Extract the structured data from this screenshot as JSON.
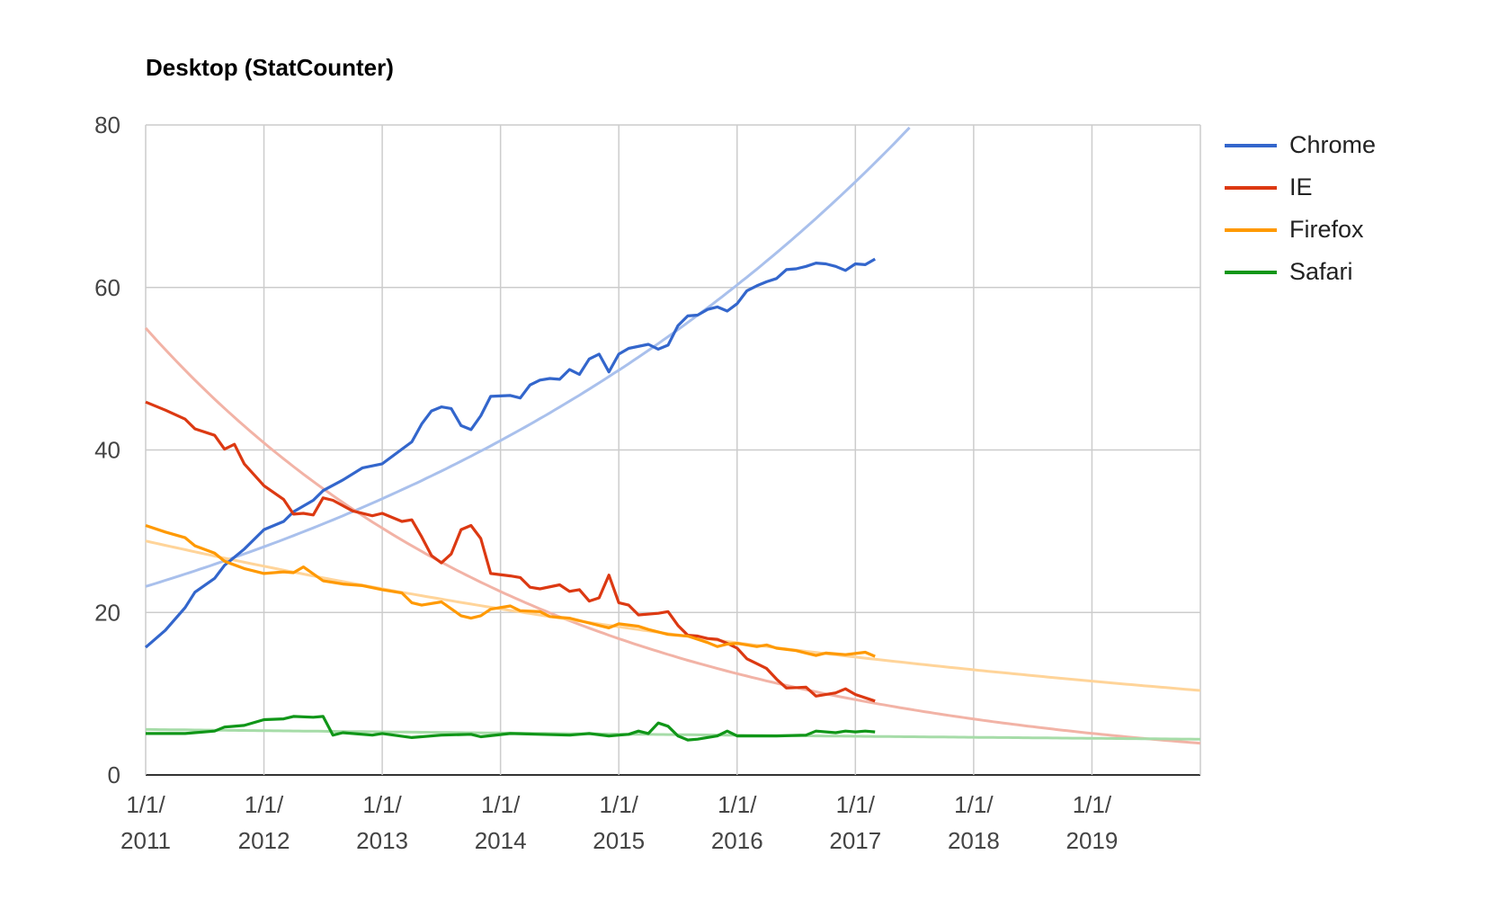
{
  "chart_data": {
    "type": "line",
    "title": "Desktop (StatCounter)",
    "xlabel": "",
    "ylabel": "",
    "ylim": [
      0,
      80
    ],
    "xlim": [
      "2011-01",
      "2019-12"
    ],
    "y_ticks": [
      {
        "value": 0,
        "label": "0"
      },
      {
        "value": 20,
        "label": "20"
      },
      {
        "value": 40,
        "label": "40"
      },
      {
        "value": 60,
        "label": "60"
      },
      {
        "value": 80,
        "label": "80"
      }
    ],
    "x_ticks": [
      {
        "value": "2011-01",
        "line1": "1/1/",
        "line2": "2011"
      },
      {
        "value": "2012-01",
        "line1": "1/1/",
        "line2": "2012"
      },
      {
        "value": "2013-01",
        "line1": "1/1/",
        "line2": "2013"
      },
      {
        "value": "2014-01",
        "line1": "1/1/",
        "line2": "2014"
      },
      {
        "value": "2015-01",
        "line1": "1/1/",
        "line2": "2015"
      },
      {
        "value": "2016-01",
        "line1": "1/1/",
        "line2": "2016"
      },
      {
        "value": "2017-01",
        "line1": "1/1/",
        "line2": "2017"
      },
      {
        "value": "2018-01",
        "line1": "1/1/",
        "line2": "2018"
      },
      {
        "value": "2019-01",
        "line1": "1/1/",
        "line2": "2019"
      }
    ],
    "grid": true,
    "legend_position": "right",
    "series": [
      {
        "name": "Chrome",
        "color": "#3366cc",
        "trend_color": "#a9c0ec",
        "trendline": {
          "type": "exponential",
          "points": [
            [
              "2011-01",
              23.2
            ],
            [
              "2017-01",
              73.0
            ],
            [
              "2017-06",
              80.0
            ]
          ]
        },
        "points": [
          [
            "2011-01",
            15.7
          ],
          [
            "2011-03",
            17.8
          ],
          [
            "2011-05",
            20.6
          ],
          [
            "2011-06",
            22.5
          ],
          [
            "2011-08",
            24.2
          ],
          [
            "2011-09",
            25.8
          ],
          [
            "2011-11",
            27.8
          ],
          [
            "2012-01",
            30.2
          ],
          [
            "2012-03",
            31.2
          ],
          [
            "2012-04",
            32.4
          ],
          [
            "2012-06",
            33.8
          ],
          [
            "2012-07",
            35.0
          ],
          [
            "2012-09",
            36.3
          ],
          [
            "2012-11",
            37.8
          ],
          [
            "2013-01",
            38.3
          ],
          [
            "2013-03",
            40.1
          ],
          [
            "2013-04",
            41.0
          ],
          [
            "2013-05",
            43.2
          ],
          [
            "2013-06",
            44.8
          ],
          [
            "2013-07",
            45.3
          ],
          [
            "2013-08",
            45.1
          ],
          [
            "2013-09",
            43.0
          ],
          [
            "2013-10",
            42.5
          ],
          [
            "2013-11",
            44.2
          ],
          [
            "2013-12",
            46.6
          ],
          [
            "2014-02",
            46.7
          ],
          [
            "2014-03",
            46.4
          ],
          [
            "2014-04",
            48.0
          ],
          [
            "2014-05",
            48.6
          ],
          [
            "2014-06",
            48.8
          ],
          [
            "2014-07",
            48.7
          ],
          [
            "2014-08",
            49.9
          ],
          [
            "2014-09",
            49.3
          ],
          [
            "2014-10",
            51.2
          ],
          [
            "2014-11",
            51.8
          ],
          [
            "2014-12",
            49.6
          ],
          [
            "2015-01",
            51.8
          ],
          [
            "2015-02",
            52.5
          ],
          [
            "2015-04",
            53.0
          ],
          [
            "2015-05",
            52.4
          ],
          [
            "2015-06",
            52.9
          ],
          [
            "2015-07",
            55.3
          ],
          [
            "2015-08",
            56.5
          ],
          [
            "2015-09",
            56.6
          ],
          [
            "2015-10",
            57.3
          ],
          [
            "2015-11",
            57.6
          ],
          [
            "2015-12",
            57.1
          ],
          [
            "2016-01",
            58.0
          ],
          [
            "2016-02",
            59.6
          ],
          [
            "2016-03",
            60.2
          ],
          [
            "2016-04",
            60.7
          ],
          [
            "2016-05",
            61.1
          ],
          [
            "2016-06",
            62.2
          ],
          [
            "2016-07",
            62.3
          ],
          [
            "2016-08",
            62.6
          ],
          [
            "2016-09",
            63.0
          ],
          [
            "2016-10",
            62.9
          ],
          [
            "2016-11",
            62.6
          ],
          [
            "2016-12",
            62.1
          ],
          [
            "2017-01",
            62.9
          ],
          [
            "2017-02",
            62.8
          ],
          [
            "2017-03",
            63.5
          ]
        ]
      },
      {
        "name": "IE",
        "color": "#dc3912",
        "trend_color": "#f2b3a6",
        "trendline": {
          "type": "exponential",
          "points": [
            [
              "2011-01",
              55.0
            ],
            [
              "2019-12",
              3.9
            ]
          ]
        },
        "points": [
          [
            "2011-01",
            45.9
          ],
          [
            "2011-03",
            44.9
          ],
          [
            "2011-05",
            43.8
          ],
          [
            "2011-06",
            42.6
          ],
          [
            "2011-08",
            41.8
          ],
          [
            "2011-09",
            40.1
          ],
          [
            "2011-10",
            40.7
          ],
          [
            "2011-11",
            38.3
          ],
          [
            "2012-01",
            35.6
          ],
          [
            "2012-03",
            33.9
          ],
          [
            "2012-04",
            32.1
          ],
          [
            "2012-05",
            32.2
          ],
          [
            "2012-06",
            32.0
          ],
          [
            "2012-07",
            34.1
          ],
          [
            "2012-08",
            33.8
          ],
          [
            "2012-10",
            32.5
          ],
          [
            "2012-12",
            31.9
          ],
          [
            "2013-01",
            32.2
          ],
          [
            "2013-03",
            31.2
          ],
          [
            "2013-04",
            31.4
          ],
          [
            "2013-05",
            29.3
          ],
          [
            "2013-06",
            27.0
          ],
          [
            "2013-07",
            26.1
          ],
          [
            "2013-08",
            27.2
          ],
          [
            "2013-09",
            30.2
          ],
          [
            "2013-10",
            30.7
          ],
          [
            "2013-11",
            29.1
          ],
          [
            "2013-12",
            24.8
          ],
          [
            "2014-02",
            24.5
          ],
          [
            "2014-03",
            24.3
          ],
          [
            "2014-04",
            23.1
          ],
          [
            "2014-05",
            22.9
          ],
          [
            "2014-07",
            23.4
          ],
          [
            "2014-08",
            22.6
          ],
          [
            "2014-09",
            22.8
          ],
          [
            "2014-10",
            21.4
          ],
          [
            "2014-11",
            21.8
          ],
          [
            "2014-12",
            24.6
          ],
          [
            "2015-01",
            21.2
          ],
          [
            "2015-02",
            20.9
          ],
          [
            "2015-03",
            19.7
          ],
          [
            "2015-05",
            19.9
          ],
          [
            "2015-06",
            20.1
          ],
          [
            "2015-07",
            18.4
          ],
          [
            "2015-08",
            17.2
          ],
          [
            "2015-09",
            17.1
          ],
          [
            "2015-10",
            16.8
          ],
          [
            "2015-11",
            16.7
          ],
          [
            "2015-12",
            16.2
          ],
          [
            "2016-01",
            15.6
          ],
          [
            "2016-02",
            14.3
          ],
          [
            "2016-03",
            13.7
          ],
          [
            "2016-04",
            13.1
          ],
          [
            "2016-05",
            11.8
          ],
          [
            "2016-06",
            10.7
          ],
          [
            "2016-08",
            10.8
          ],
          [
            "2016-09",
            9.7
          ],
          [
            "2016-11",
            10.1
          ],
          [
            "2016-12",
            10.6
          ],
          [
            "2017-01",
            9.9
          ],
          [
            "2017-03",
            9.1
          ]
        ]
      },
      {
        "name": "Firefox",
        "color": "#ff9900",
        "trend_color": "#ffd499",
        "trendline": {
          "type": "exponential",
          "points": [
            [
              "2011-01",
              28.8
            ],
            [
              "2019-12",
              10.4
            ]
          ]
        },
        "points": [
          [
            "2011-01",
            30.7
          ],
          [
            "2011-03",
            29.9
          ],
          [
            "2011-05",
            29.2
          ],
          [
            "2011-06",
            28.2
          ],
          [
            "2011-08",
            27.3
          ],
          [
            "2011-09",
            26.3
          ],
          [
            "2011-11",
            25.4
          ],
          [
            "2012-01",
            24.8
          ],
          [
            "2012-03",
            25.0
          ],
          [
            "2012-04",
            24.9
          ],
          [
            "2012-05",
            25.6
          ],
          [
            "2012-07",
            23.9
          ],
          [
            "2012-09",
            23.5
          ],
          [
            "2012-11",
            23.3
          ],
          [
            "2013-01",
            22.8
          ],
          [
            "2013-03",
            22.4
          ],
          [
            "2013-04",
            21.2
          ],
          [
            "2013-05",
            20.9
          ],
          [
            "2013-07",
            21.3
          ],
          [
            "2013-09",
            19.6
          ],
          [
            "2013-10",
            19.3
          ],
          [
            "2013-11",
            19.6
          ],
          [
            "2013-12",
            20.4
          ],
          [
            "2014-02",
            20.8
          ],
          [
            "2014-03",
            20.2
          ],
          [
            "2014-05",
            20.1
          ],
          [
            "2014-06",
            19.5
          ],
          [
            "2014-08",
            19.3
          ],
          [
            "2014-10",
            18.7
          ],
          [
            "2014-12",
            18.1
          ],
          [
            "2015-01",
            18.6
          ],
          [
            "2015-03",
            18.3
          ],
          [
            "2015-04",
            17.9
          ],
          [
            "2015-06",
            17.3
          ],
          [
            "2015-08",
            17.1
          ],
          [
            "2015-10",
            16.3
          ],
          [
            "2015-11",
            15.8
          ],
          [
            "2015-12",
            16.1
          ],
          [
            "2016-01",
            16.2
          ],
          [
            "2016-03",
            15.8
          ],
          [
            "2016-04",
            16.0
          ],
          [
            "2016-05",
            15.6
          ],
          [
            "2016-07",
            15.3
          ],
          [
            "2016-08",
            15.0
          ],
          [
            "2016-09",
            14.7
          ],
          [
            "2016-10",
            15.0
          ],
          [
            "2016-12",
            14.8
          ],
          [
            "2017-02",
            15.1
          ],
          [
            "2017-03",
            14.6
          ]
        ]
      },
      {
        "name": "Safari",
        "color": "#109618",
        "trend_color": "#a6dca8",
        "trendline": {
          "type": "exponential",
          "points": [
            [
              "2011-01",
              5.6
            ],
            [
              "2019-12",
              4.4
            ]
          ]
        },
        "points": [
          [
            "2011-01",
            5.1
          ],
          [
            "2011-05",
            5.1
          ],
          [
            "2011-08",
            5.4
          ],
          [
            "2011-09",
            5.9
          ],
          [
            "2011-11",
            6.1
          ],
          [
            "2012-01",
            6.8
          ],
          [
            "2012-03",
            6.9
          ],
          [
            "2012-04",
            7.2
          ],
          [
            "2012-06",
            7.1
          ],
          [
            "2012-07",
            7.2
          ],
          [
            "2012-08",
            4.9
          ],
          [
            "2012-09",
            5.2
          ],
          [
            "2012-12",
            4.9
          ],
          [
            "2013-01",
            5.1
          ],
          [
            "2013-04",
            4.6
          ],
          [
            "2013-07",
            4.9
          ],
          [
            "2013-10",
            5.0
          ],
          [
            "2013-11",
            4.7
          ],
          [
            "2014-02",
            5.1
          ],
          [
            "2014-05",
            5.0
          ],
          [
            "2014-08",
            4.9
          ],
          [
            "2014-10",
            5.1
          ],
          [
            "2014-12",
            4.8
          ],
          [
            "2015-01",
            4.9
          ],
          [
            "2015-02",
            5.0
          ],
          [
            "2015-03",
            5.4
          ],
          [
            "2015-04",
            5.1
          ],
          [
            "2015-05",
            6.4
          ],
          [
            "2015-06",
            6.0
          ],
          [
            "2015-07",
            4.8
          ],
          [
            "2015-08",
            4.3
          ],
          [
            "2015-09",
            4.4
          ],
          [
            "2015-11",
            4.8
          ],
          [
            "2015-12",
            5.4
          ],
          [
            "2016-01",
            4.8
          ],
          [
            "2016-05",
            4.8
          ],
          [
            "2016-08",
            4.9
          ],
          [
            "2016-09",
            5.4
          ],
          [
            "2016-11",
            5.2
          ],
          [
            "2016-12",
            5.4
          ],
          [
            "2017-01",
            5.3
          ],
          [
            "2017-02",
            5.4
          ],
          [
            "2017-03",
            5.3
          ]
        ]
      }
    ]
  }
}
